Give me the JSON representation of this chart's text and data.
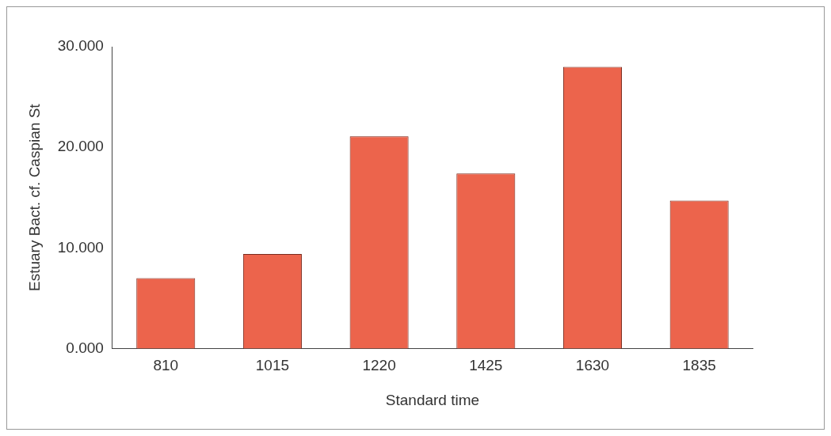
{
  "chart_data": {
    "type": "bar",
    "xlabel": "Standard time",
    "ylabel": "Estuary Bact. cf. Caspian St",
    "categories": [
      "810",
      "1015",
      "1220",
      "1425",
      "1630",
      "1835"
    ],
    "values": [
      7.0,
      9.4,
      21.1,
      17.4,
      28.0,
      14.7
    ],
    "color": "#ec644c",
    "ylim": [
      0,
      30
    ],
    "yticks": [
      {
        "value": 0,
        "label": "0.000"
      },
      {
        "value": 10,
        "label": "10.000"
      },
      {
        "value": 20,
        "label": "20.000"
      },
      {
        "value": 30,
        "label": "30.000"
      }
    ],
    "grid": false,
    "legend": false
  }
}
